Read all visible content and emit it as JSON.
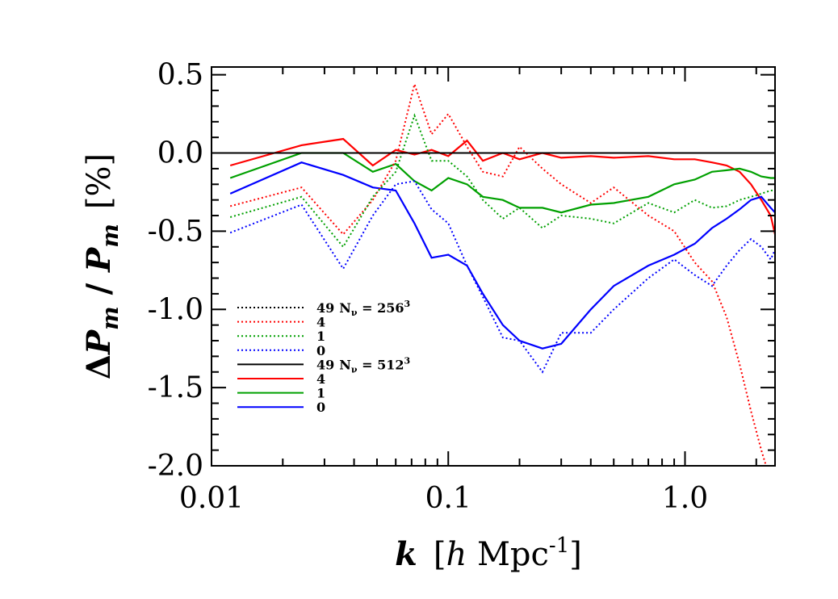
{
  "chart_data": {
    "type": "line",
    "xlabel": {
      "italic": "k",
      "rest": "[",
      "h": "h",
      "unit": " Mpc",
      "sup": "-1",
      "close": "]"
    },
    "ylabel": {
      "delta": "Δ",
      "P": "P",
      "m": "m",
      "slash": " / ",
      "unit": "[%]"
    },
    "xscale": "log",
    "xlim": [
      0.01,
      2.4
    ],
    "ylim": [
      -2.0,
      0.55
    ],
    "xticks": [
      {
        "value": 0.01,
        "label": "0.01"
      },
      {
        "value": 0.1,
        "label": "0.1"
      },
      {
        "value": 1.0,
        "label": "1.0"
      }
    ],
    "yticks": [
      {
        "value": 0.5,
        "label": "0.5"
      },
      {
        "value": 0.0,
        "label": "0.0"
      },
      {
        "value": -0.5,
        "label": "-0.5"
      },
      {
        "value": -1.0,
        "label": "-1.0"
      },
      {
        "value": -1.5,
        "label": "-1.5"
      },
      {
        "value": -2.0,
        "label": "-2.0"
      }
    ],
    "reference_line": 0.0,
    "legend": [
      {
        "text": "49",
        "extra": "N",
        "sub": "ν",
        "eq": " = 256",
        "sup": "3",
        "color": "#000000",
        "style": "dotted"
      },
      {
        "text": "4",
        "color": "#ff0000",
        "style": "dotted"
      },
      {
        "text": "1",
        "color": "#00a000",
        "style": "dotted"
      },
      {
        "text": "0",
        "color": "#0000ff",
        "style": "dotted"
      },
      {
        "text": "49",
        "extra": "N",
        "sub": "ν",
        "eq": " = 512",
        "sup": "3",
        "color": "#000000",
        "style": "solid"
      },
      {
        "text": "4",
        "color": "#ff0000",
        "style": "solid"
      },
      {
        "text": "1",
        "color": "#00a000",
        "style": "solid"
      },
      {
        "text": "0",
        "color": "#0000ff",
        "style": "solid"
      }
    ],
    "series": [
      {
        "color": "#ff0000",
        "style": "solid",
        "x": [
          0.012,
          0.024,
          0.036,
          0.048,
          0.06,
          0.072,
          0.085,
          0.1,
          0.12,
          0.14,
          0.17,
          0.2,
          0.25,
          0.3,
          0.4,
          0.5,
          0.7,
          0.9,
          1.1,
          1.3,
          1.5,
          1.7,
          1.9,
          2.1,
          2.3,
          2.4
        ],
        "y": [
          -0.08,
          0.05,
          0.09,
          -0.08,
          0.02,
          -0.01,
          0.02,
          -0.02,
          0.08,
          -0.05,
          0.0,
          -0.04,
          0.0,
          -0.03,
          -0.02,
          -0.03,
          -0.02,
          -0.04,
          -0.04,
          -0.06,
          -0.08,
          -0.12,
          -0.2,
          -0.3,
          -0.4,
          -0.52
        ]
      },
      {
        "color": "#00a000",
        "style": "solid",
        "x": [
          0.012,
          0.024,
          0.036,
          0.048,
          0.06,
          0.072,
          0.085,
          0.1,
          0.12,
          0.14,
          0.17,
          0.2,
          0.25,
          0.3,
          0.4,
          0.5,
          0.7,
          0.9,
          1.1,
          1.3,
          1.5,
          1.7,
          1.9,
          2.1,
          2.3,
          2.4
        ],
        "y": [
          -0.16,
          0.0,
          0.0,
          -0.12,
          -0.07,
          -0.18,
          -0.24,
          -0.16,
          -0.2,
          -0.28,
          -0.3,
          -0.35,
          -0.35,
          -0.38,
          -0.33,
          -0.32,
          -0.28,
          -0.2,
          -0.17,
          -0.12,
          -0.11,
          -0.1,
          -0.12,
          -0.15,
          -0.16,
          -0.16
        ]
      },
      {
        "color": "#0000ff",
        "style": "solid",
        "x": [
          0.012,
          0.024,
          0.036,
          0.048,
          0.06,
          0.072,
          0.085,
          0.1,
          0.12,
          0.14,
          0.17,
          0.2,
          0.25,
          0.3,
          0.4,
          0.5,
          0.7,
          0.9,
          1.1,
          1.3,
          1.5,
          1.7,
          1.9,
          2.1,
          2.3,
          2.4
        ],
        "y": [
          -0.26,
          -0.06,
          -0.14,
          -0.22,
          -0.24,
          -0.45,
          -0.67,
          -0.65,
          -0.72,
          -0.9,
          -1.1,
          -1.2,
          -1.25,
          -1.22,
          -1.0,
          -0.85,
          -0.72,
          -0.65,
          -0.58,
          -0.48,
          -0.42,
          -0.36,
          -0.3,
          -0.28,
          -0.35,
          -0.38
        ]
      },
      {
        "color": "#ff0000",
        "style": "dotted",
        "x": [
          0.012,
          0.024,
          0.036,
          0.048,
          0.06,
          0.072,
          0.085,
          0.1,
          0.12,
          0.14,
          0.17,
          0.2,
          0.25,
          0.3,
          0.4,
          0.5,
          0.7,
          0.9,
          1.1,
          1.3,
          1.5,
          1.7,
          1.9,
          2.1,
          2.2
        ],
        "y": [
          -0.34,
          -0.22,
          -0.52,
          -0.3,
          -0.05,
          0.44,
          0.12,
          0.25,
          0.04,
          -0.12,
          -0.15,
          0.04,
          -0.1,
          -0.2,
          -0.32,
          -0.22,
          -0.4,
          -0.5,
          -0.7,
          -0.82,
          -1.05,
          -1.35,
          -1.65,
          -1.9,
          -2.0
        ]
      },
      {
        "color": "#00a000",
        "style": "dotted",
        "x": [
          0.012,
          0.024,
          0.036,
          0.048,
          0.06,
          0.072,
          0.085,
          0.1,
          0.12,
          0.14,
          0.17,
          0.2,
          0.25,
          0.3,
          0.4,
          0.5,
          0.7,
          0.9,
          1.1,
          1.3,
          1.5,
          1.7,
          1.9,
          2.1,
          2.3,
          2.4
        ],
        "y": [
          -0.41,
          -0.28,
          -0.6,
          -0.28,
          -0.12,
          0.24,
          -0.05,
          -0.05,
          -0.15,
          -0.3,
          -0.42,
          -0.35,
          -0.48,
          -0.4,
          -0.42,
          -0.45,
          -0.32,
          -0.38,
          -0.3,
          -0.35,
          -0.34,
          -0.3,
          -0.28,
          -0.26,
          -0.24,
          -0.24
        ]
      },
      {
        "color": "#0000ff",
        "style": "dotted",
        "x": [
          0.012,
          0.024,
          0.036,
          0.048,
          0.06,
          0.072,
          0.085,
          0.1,
          0.12,
          0.14,
          0.17,
          0.2,
          0.25,
          0.3,
          0.4,
          0.5,
          0.7,
          0.9,
          1.1,
          1.3,
          1.5,
          1.7,
          1.9,
          2.1,
          2.3,
          2.4
        ],
        "y": [
          -0.51,
          -0.33,
          -0.74,
          -0.4,
          -0.2,
          -0.18,
          -0.36,
          -0.45,
          -0.72,
          -0.92,
          -1.18,
          -1.2,
          -1.4,
          -1.15,
          -1.15,
          -1.0,
          -0.8,
          -0.68,
          -0.78,
          -0.85,
          -0.72,
          -0.62,
          -0.55,
          -0.6,
          -0.68,
          -0.62
        ]
      }
    ]
  }
}
